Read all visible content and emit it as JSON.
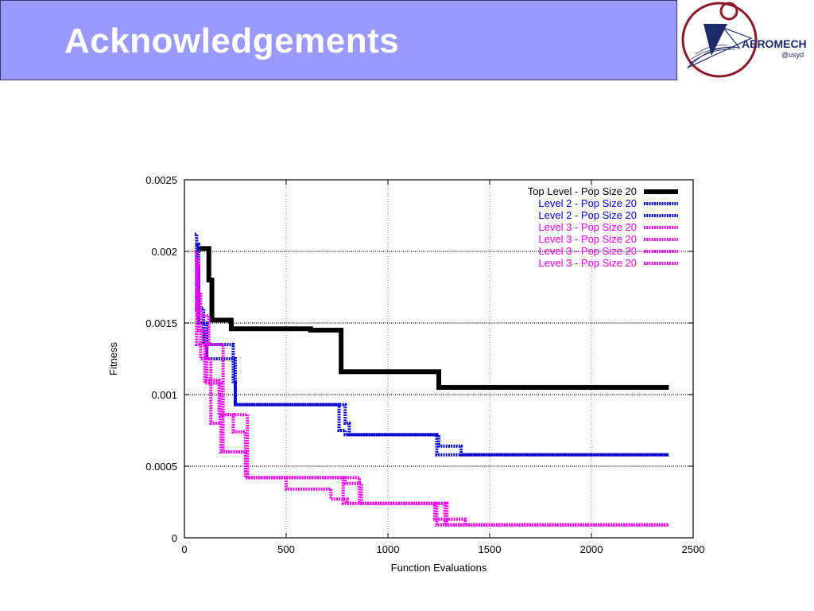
{
  "slide": {
    "title": "Acknowledgements"
  },
  "logo": {
    "text_main": "AEROMECH",
    "text_sub": "@usyd",
    "colors": {
      "ring": "#8a1a2a",
      "mark": "#1d2a6a"
    }
  },
  "chart_data": {
    "type": "line",
    "xlabel": "Function Evaluations",
    "ylabel": "Fitness",
    "xlim": [
      0,
      2500
    ],
    "ylim": [
      0,
      0.0025
    ],
    "xticks": [
      0,
      500,
      1000,
      1500,
      2000,
      2500
    ],
    "xtick_labels": [
      "0",
      "500",
      "1000",
      "1500",
      "2000",
      "2500"
    ],
    "yticks": [
      0,
      0.0005,
      0.001,
      0.0015,
      0.002,
      0.0025
    ],
    "ytick_labels": [
      "0",
      "0.0005",
      "0.001",
      "0.0015",
      "0.002",
      "0.0025"
    ],
    "grid": true,
    "legend_position": "top-right",
    "series": [
      {
        "name": "Top Level - Pop Size 20",
        "color": "#000000",
        "style": "solid-thick",
        "x": [
          60,
          120,
          120,
          135,
          135,
          230,
          230,
          620,
          620,
          770,
          770,
          1250,
          1250,
          2380
        ],
        "y": [
          0.00202,
          0.00202,
          0.0018,
          0.0018,
          0.00152,
          0.00152,
          0.00146,
          0.00146,
          0.00145,
          0.00145,
          0.00116,
          0.00116,
          0.00105,
          0.00105
        ]
      },
      {
        "name": "Level 2 - Pop Size 20",
        "color": "#0000cc",
        "style": "dotted",
        "x": [
          50,
          60,
          60,
          95,
          95,
          240,
          240,
          250,
          250,
          790,
          790,
          810,
          810,
          1250,
          1250,
          1360,
          1360,
          2380
        ],
        "y": [
          0.00212,
          0.00212,
          0.0016,
          0.0016,
          0.00135,
          0.00135,
          0.00108,
          0.00108,
          0.00093,
          0.00093,
          0.0008,
          0.0008,
          0.00072,
          0.00072,
          0.00064,
          0.00064,
          0.00058,
          0.00058
        ]
      },
      {
        "name": "Level 2 - Pop Size 20",
        "color": "#0000cc",
        "style": "dotted",
        "x": [
          55,
          70,
          70,
          110,
          110,
          250,
          250,
          760,
          760,
          790,
          790,
          1240,
          1240,
          1340,
          1340,
          2380
        ],
        "y": [
          0.00205,
          0.00205,
          0.0015,
          0.0015,
          0.00125,
          0.00125,
          0.00093,
          0.00093,
          0.00075,
          0.00075,
          0.00072,
          0.00072,
          0.00058,
          0.00058,
          0.00058,
          0.00058
        ]
      },
      {
        "name": "Level 3 - Pop Size 20",
        "color": "#ee00ee",
        "style": "dotted",
        "x": [
          50,
          60,
          60,
          110,
          110,
          170,
          170,
          240,
          240,
          300,
          300,
          500,
          500,
          720,
          720,
          800,
          800,
          1230,
          1230,
          1380,
          1380,
          2380
        ],
        "y": [
          0.002,
          0.002,
          0.00135,
          0.00135,
          0.0011,
          0.0011,
          0.00086,
          0.00086,
          0.00074,
          0.00074,
          0.00042,
          0.00042,
          0.00034,
          0.00034,
          0.00027,
          0.00027,
          0.00024,
          0.00024,
          0.00013,
          0.00013,
          9e-05,
          9e-05
        ]
      },
      {
        "name": "Level 3 - Pop Size 20",
        "color": "#ee00ee",
        "style": "dotted",
        "x": [
          55,
          70,
          70,
          100,
          100,
          180,
          180,
          300,
          300,
          780,
          780,
          850,
          850,
          1240,
          1240,
          1370,
          1370,
          2380
        ],
        "y": [
          0.0019,
          0.0019,
          0.00145,
          0.00145,
          0.00108,
          0.00108,
          0.0006,
          0.0006,
          0.00042,
          0.00042,
          0.00024,
          0.00024,
          0.00024,
          0.00024,
          9e-05,
          9e-05,
          9e-05,
          9e-05
        ]
      },
      {
        "name": "Level 3 - Pop Size 20",
        "color": "#ee00ee",
        "style": "dotted",
        "x": [
          60,
          80,
          80,
          130,
          130,
          175,
          175,
          310,
          310,
          790,
          790,
          870,
          870,
          1290,
          1290,
          2380
        ],
        "y": [
          0.0017,
          0.0017,
          0.00125,
          0.00125,
          0.0008,
          0.0008,
          0.00086,
          0.00086,
          0.00042,
          0.00042,
          0.00038,
          0.00038,
          0.00024,
          0.00024,
          9e-05,
          9e-05
        ]
      },
      {
        "name": "Level 3 - Pop Size 20",
        "color": "#ee00ee",
        "style": "dotted",
        "x": [
          52,
          65,
          65,
          120,
          120,
          190,
          190,
          310,
          310,
          820,
          820,
          860,
          860,
          1280,
          1280,
          2380
        ],
        "y": [
          0.00195,
          0.00195,
          0.00155,
          0.00155,
          0.00135,
          0.00135,
          0.0006,
          0.0006,
          0.00042,
          0.00042,
          0.00042,
          0.00042,
          0.00024,
          0.00024,
          9e-05,
          9e-05
        ]
      }
    ]
  }
}
